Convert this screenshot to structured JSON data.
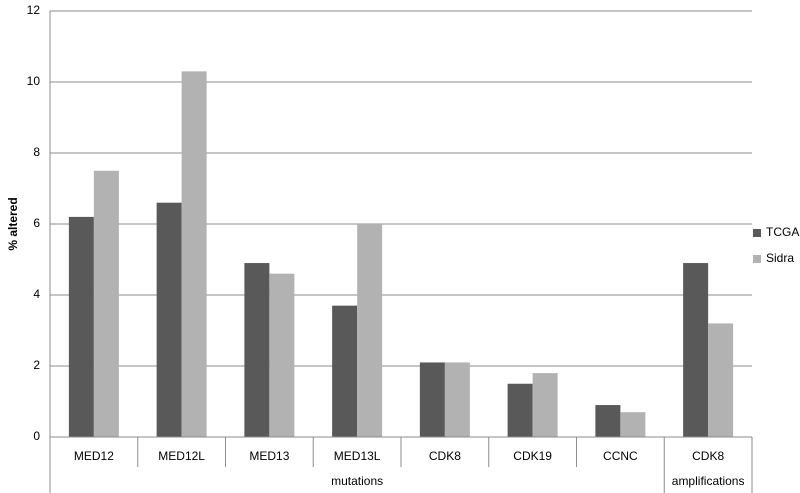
{
  "chart_data": {
    "type": "bar",
    "ylabel": "% altered",
    "groups": [
      {
        "label": "mutations",
        "categories": [
          "MED12",
          "MED12L",
          "MED13",
          "MED13L",
          "CDK8",
          "CDK19",
          "CCNC"
        ]
      },
      {
        "label": "amplifications",
        "categories": [
          "CDK8"
        ]
      }
    ],
    "series": [
      {
        "name": "TCGA",
        "color": "#595959",
        "values": [
          6.2,
          6.6,
          4.9,
          3.7,
          2.1,
          1.5,
          0.9,
          4.9
        ]
      },
      {
        "name": "Sidra",
        "color": "#b2b2b2",
        "values": [
          7.5,
          10.3,
          4.6,
          6.0,
          2.1,
          1.8,
          0.7,
          3.2
        ]
      }
    ],
    "ylim": [
      0,
      12
    ],
    "yticks": [
      0,
      2,
      4,
      6,
      8,
      10,
      12
    ],
    "grid": true,
    "legend": "right"
  }
}
